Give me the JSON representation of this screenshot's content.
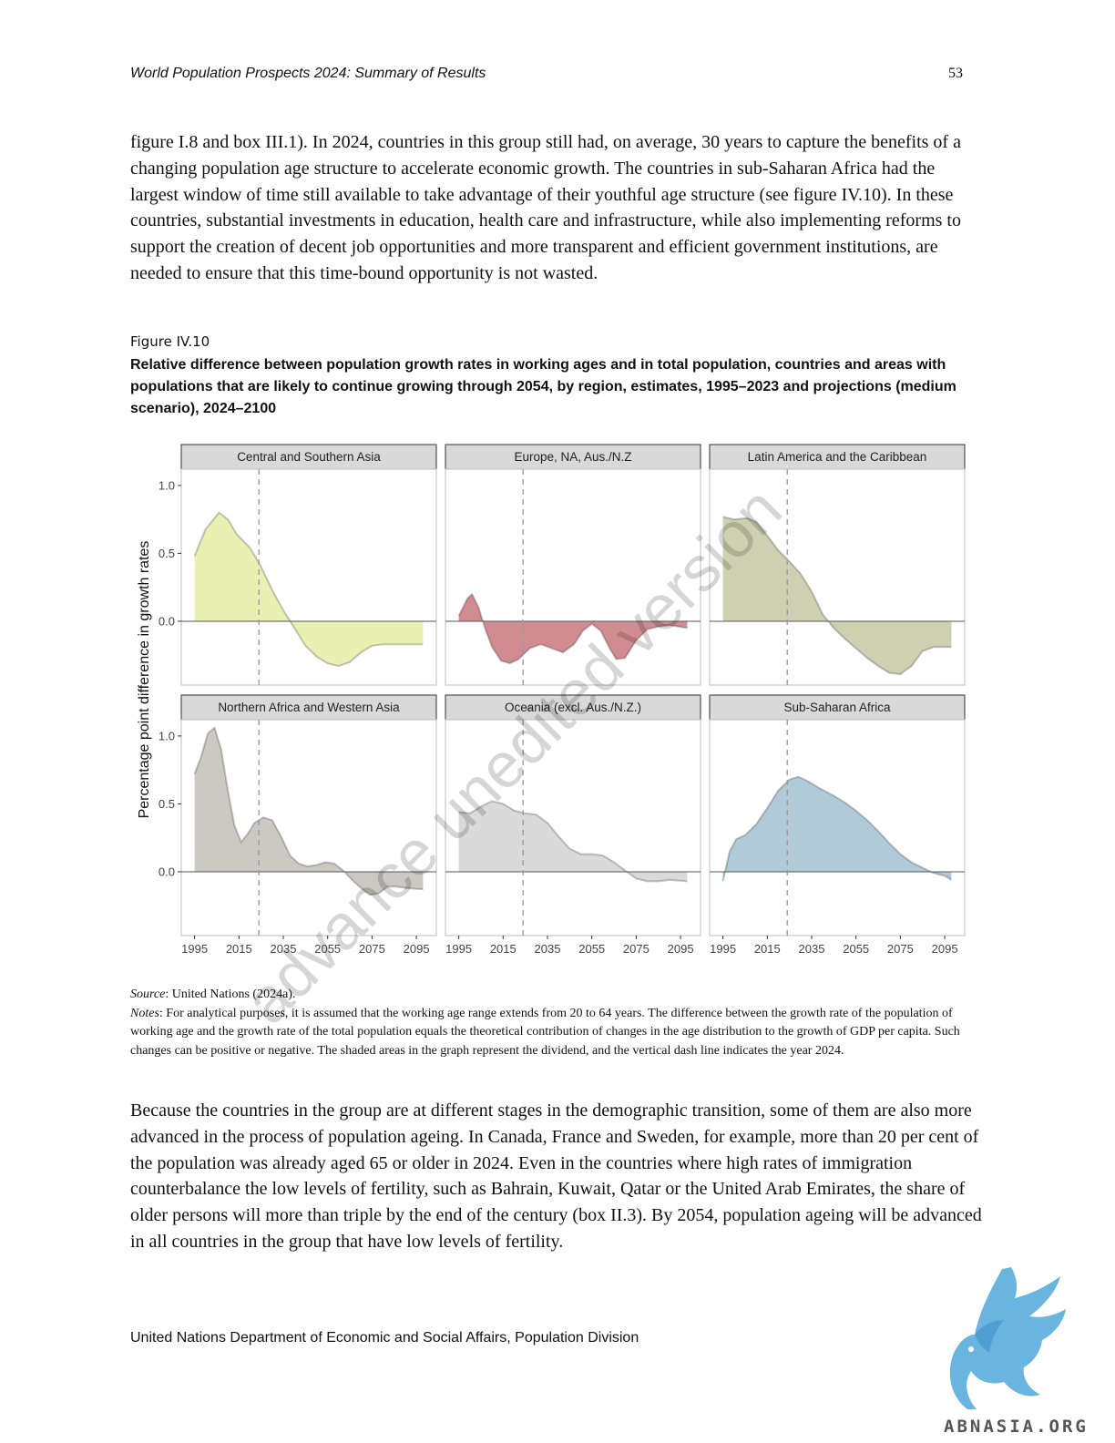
{
  "header": {
    "running_title": "World Population Prospects 2024: Summary of Results",
    "page_number": "53"
  },
  "paragraph1": "figure I.8 and box III.1). In 2024, countries in this group still had, on average, 30 years to capture the benefits of a changing population age structure to accelerate economic growth. The countries in sub-Saharan Africa had the largest window of time still available to take advantage of their youthful age structure (see figure IV.10). In these countries, substantial investments in education, health care and infrastructure, while also implementing reforms to support the creation of decent job opportunities and more transparent and efficient government institutions, are needed to ensure that this time-bound opportunity is not wasted.",
  "figure": {
    "label": "Figure IV.10",
    "title": "Relative difference between population growth rates in working ages and in total population, countries and areas with populations that are likely to continue growing through 2054, by region, estimates, 1995–2023 and projections (medium scenario), 2024–2100",
    "source_label": "Source",
    "source_text": ": United Nations (2024a).",
    "notes_label": "Notes",
    "notes_text": ": For analytical purposes, it is assumed that the working age range extends from 20 to 64 years. The difference between the growth rate of the population of working age and the growth rate of the total population equals the theoretical contribution of changes in the age distribution to the growth of GDP per capita. Such changes can be positive or negative. The shaded areas in the graph represent the dividend, and the vertical dash line indicates the year 2024."
  },
  "chart_data": {
    "type": "area",
    "ylabel": "Percentage point difference in growth rates",
    "xlim": [
      1989,
      2104
    ],
    "ylim": [
      -0.47,
      1.12
    ],
    "xticks": [
      1995,
      2015,
      2035,
      2055,
      2075,
      2095
    ],
    "yticks": [
      0.0,
      0.5,
      1.0
    ],
    "ytick_labels": [
      "0.0",
      "0.5",
      "1.0"
    ],
    "vline_year": 2024,
    "grid": false,
    "panels": [
      {
        "name": "Central and Southern Asia",
        "color": "#e5f0a8",
        "points": [
          [
            1995,
            0.48
          ],
          [
            2000,
            0.68
          ],
          [
            2006,
            0.8
          ],
          [
            2010,
            0.75
          ],
          [
            2014,
            0.64
          ],
          [
            2020,
            0.54
          ],
          [
            2025,
            0.4
          ],
          [
            2030,
            0.23
          ],
          [
            2035,
            0.08
          ],
          [
            2040,
            -0.05
          ],
          [
            2045,
            -0.18
          ],
          [
            2050,
            -0.26
          ],
          [
            2055,
            -0.31
          ],
          [
            2060,
            -0.33
          ],
          [
            2065,
            -0.3
          ],
          [
            2070,
            -0.23
          ],
          [
            2075,
            -0.18
          ],
          [
            2080,
            -0.17
          ],
          [
            2085,
            -0.17
          ],
          [
            2090,
            -0.17
          ],
          [
            2098,
            -0.17
          ]
        ]
      },
      {
        "name": "Europe, NA, Aus./N.Z",
        "color": "#cc7f86",
        "points": [
          [
            1995,
            0.04
          ],
          [
            1999,
            0.17
          ],
          [
            2001,
            0.2
          ],
          [
            2004,
            0.1
          ],
          [
            2007,
            -0.06
          ],
          [
            2010,
            -0.19
          ],
          [
            2014,
            -0.29
          ],
          [
            2018,
            -0.31
          ],
          [
            2022,
            -0.28
          ],
          [
            2027,
            -0.2
          ],
          [
            2032,
            -0.17
          ],
          [
            2037,
            -0.2
          ],
          [
            2042,
            -0.23
          ],
          [
            2047,
            -0.17
          ],
          [
            2051,
            -0.07
          ],
          [
            2055,
            -0.02
          ],
          [
            2059,
            -0.07
          ],
          [
            2063,
            -0.2
          ],
          [
            2066,
            -0.28
          ],
          [
            2070,
            -0.27
          ],
          [
            2075,
            -0.14
          ],
          [
            2080,
            -0.06
          ],
          [
            2085,
            -0.04
          ],
          [
            2090,
            -0.03
          ],
          [
            2098,
            -0.05
          ]
        ]
      },
      {
        "name": "Latin America and the Caribbean",
        "color": "#c8cca8",
        "points": [
          [
            1995,
            0.77
          ],
          [
            2000,
            0.75
          ],
          [
            2006,
            0.76
          ],
          [
            2010,
            0.73
          ],
          [
            2015,
            0.63
          ],
          [
            2020,
            0.52
          ],
          [
            2025,
            0.44
          ],
          [
            2030,
            0.35
          ],
          [
            2035,
            0.22
          ],
          [
            2040,
            0.05
          ],
          [
            2045,
            -0.05
          ],
          [
            2050,
            -0.13
          ],
          [
            2055,
            -0.2
          ],
          [
            2060,
            -0.27
          ],
          [
            2065,
            -0.33
          ],
          [
            2070,
            -0.38
          ],
          [
            2075,
            -0.39
          ],
          [
            2080,
            -0.33
          ],
          [
            2085,
            -0.22
          ],
          [
            2090,
            -0.19
          ],
          [
            2098,
            -0.19
          ]
        ]
      },
      {
        "name": "Northern Africa and Western Asia",
        "color": "#c4c4bc",
        "points": [
          [
            1995,
            0.72
          ],
          [
            1998,
            0.85
          ],
          [
            2001,
            1.02
          ],
          [
            2004,
            1.06
          ],
          [
            2007,
            0.9
          ],
          [
            2010,
            0.6
          ],
          [
            2013,
            0.34
          ],
          [
            2016,
            0.22
          ],
          [
            2019,
            0.28
          ],
          [
            2022,
            0.36
          ],
          [
            2026,
            0.4
          ],
          [
            2030,
            0.38
          ],
          [
            2034,
            0.26
          ],
          [
            2038,
            0.12
          ],
          [
            2042,
            0.06
          ],
          [
            2046,
            0.04
          ],
          [
            2050,
            0.05
          ],
          [
            2054,
            0.07
          ],
          [
            2058,
            0.06
          ],
          [
            2062,
            0.01
          ],
          [
            2066,
            -0.06
          ],
          [
            2070,
            -0.12
          ],
          [
            2074,
            -0.17
          ],
          [
            2078,
            -0.16
          ],
          [
            2082,
            -0.11
          ],
          [
            2086,
            -0.11
          ],
          [
            2090,
            -0.12
          ],
          [
            2098,
            -0.13
          ]
        ]
      },
      {
        "name": "Oceania (excl. Aus./N.Z.)",
        "color": "#d6d6d6",
        "points": [
          [
            1995,
            0.44
          ],
          [
            2000,
            0.43
          ],
          [
            2005,
            0.48
          ],
          [
            2010,
            0.52
          ],
          [
            2015,
            0.5
          ],
          [
            2020,
            0.45
          ],
          [
            2025,
            0.43
          ],
          [
            2030,
            0.42
          ],
          [
            2035,
            0.36
          ],
          [
            2040,
            0.26
          ],
          [
            2045,
            0.17
          ],
          [
            2050,
            0.13
          ],
          [
            2055,
            0.13
          ],
          [
            2060,
            0.12
          ],
          [
            2065,
            0.07
          ],
          [
            2070,
            0.01
          ],
          [
            2075,
            -0.05
          ],
          [
            2080,
            -0.07
          ],
          [
            2085,
            -0.07
          ],
          [
            2090,
            -0.06
          ],
          [
            2098,
            -0.07
          ]
        ]
      },
      {
        "name": "Sub-Saharan Africa",
        "color": "#a9c4d3",
        "points": [
          [
            1995,
            -0.07
          ],
          [
            1998,
            0.15
          ],
          [
            2001,
            0.24
          ],
          [
            2005,
            0.27
          ],
          [
            2010,
            0.35
          ],
          [
            2015,
            0.47
          ],
          [
            2020,
            0.6
          ],
          [
            2025,
            0.68
          ],
          [
            2029,
            0.7
          ],
          [
            2033,
            0.67
          ],
          [
            2038,
            0.62
          ],
          [
            2045,
            0.56
          ],
          [
            2050,
            0.51
          ],
          [
            2055,
            0.45
          ],
          [
            2060,
            0.38
          ],
          [
            2065,
            0.3
          ],
          [
            2070,
            0.21
          ],
          [
            2075,
            0.13
          ],
          [
            2080,
            0.07
          ],
          [
            2085,
            0.03
          ],
          [
            2090,
            -0.01
          ],
          [
            2095,
            -0.03
          ],
          [
            2098,
            -0.06
          ]
        ]
      }
    ]
  },
  "paragraph2": "Because the countries in the group are at different stages in the demographic transition, some of them are also more advanced in the process of population ageing. In Canada, France and Sweden, for example, more than 20 per cent of the population was already aged 65 or older in 2024. Even in the countries where high rates of immigration counterbalance the low levels of fertility, such as Bahrain, Kuwait, Qatar or the United Arab Emirates, the share of older persons will more than triple by the end of the century (box II.3). By 2054, population ageing will be advanced in all countries in the group that have low levels of fertility.",
  "watermark": "advance unedited version",
  "footer": "United Nations Department of Economic and Social Affairs, Population Division",
  "logo": {
    "text": "ABNASIA.ORG",
    "icon": "griffin-logo-icon",
    "color": "#6ab4e0"
  }
}
